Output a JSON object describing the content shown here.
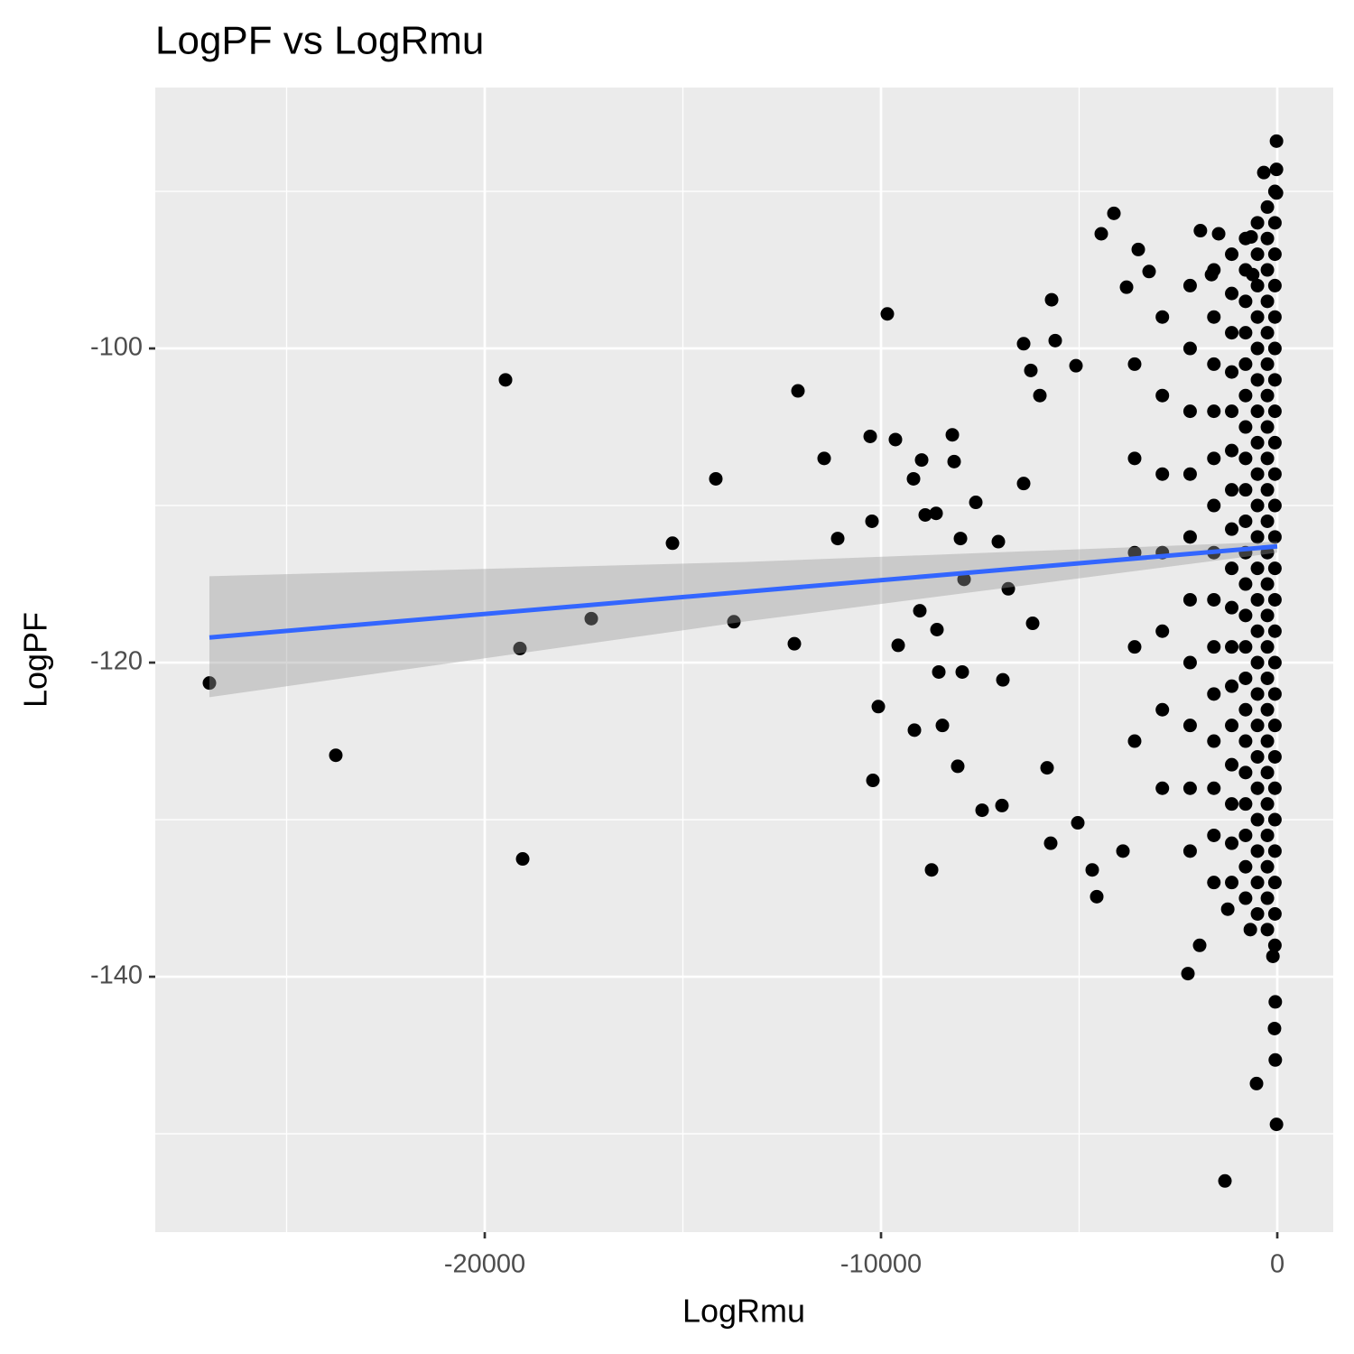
{
  "chart_data": {
    "type": "scatter",
    "title": "LogPF vs LogRmu",
    "x_label": "LogRmu",
    "y_label": "LogPF",
    "xlim": [
      -28315,
      1412
    ],
    "ylim": [
      -156.26,
      -83.39
    ],
    "xticks": [
      -20000,
      -10000,
      0
    ],
    "yticks": [
      -140,
      -120,
      -100
    ],
    "grid": true,
    "color": "#000000",
    "x": [
      -26948,
      -23759,
      -19476,
      -19112,
      -19043,
      -17312,
      -15262,
      -14169,
      -13713,
      -12187,
      -12096,
      -11435,
      -11093,
      -10273,
      -10228,
      -10205,
      -10068,
      -9841,
      -9636,
      -9567,
      -9180,
      -9157,
      -9021,
      -8975,
      -8884,
      -8610,
      -8724,
      -8588,
      -8542,
      -8451,
      -8200,
      -8155,
      -8064,
      -7995,
      -7950,
      -7904,
      -7608,
      -7449,
      -7039,
      -6948,
      -6925,
      -6788,
      -6401,
      -6219,
      -6401,
      -6173,
      -5991,
      -5809,
      -5718,
      -5695,
      -5604,
      -5080,
      -5034,
      -4670,
      -4556,
      -4442,
      -4123,
      -3895,
      -3804,
      -3508,
      -3235,
      -2255,
      -1959,
      -1321,
      -524,
      -20,
      -20,
      -20,
      -20,
      -340,
      -660,
      -1940,
      -1480,
      -1660,
      -620,
      -1250,
      -680,
      -110,
      -70,
      -50,
      -50,
      -60,
      -60,
      -60,
      -60,
      -60,
      -60,
      -60,
      -60,
      -60,
      -60,
      -60,
      -60,
      -60,
      -60,
      -60,
      -60,
      -60,
      -60,
      -60,
      -60,
      -60,
      -60,
      -60,
      -60,
      -60,
      -250,
      -250,
      -250,
      -250,
      -250,
      -250,
      -250,
      -250,
      -250,
      -250,
      -250,
      -250,
      -250,
      -250,
      -250,
      -250,
      -250,
      -250,
      -250,
      -250,
      -250,
      -250,
      -250,
      -250,
      -500,
      -500,
      -500,
      -500,
      -500,
      -500,
      -500,
      -500,
      -500,
      -500,
      -500,
      -500,
      -500,
      -500,
      -500,
      -500,
      -500,
      -500,
      -500,
      -500,
      -500,
      -500,
      -500,
      -800,
      -800,
      -800,
      -800,
      -800,
      -800,
      -800,
      -800,
      -800,
      -800,
      -800,
      -800,
      -800,
      -800,
      -800,
      -800,
      -800,
      -800,
      -800,
      -800,
      -800,
      -800,
      -1150,
      -1150,
      -1150,
      -1150,
      -1150,
      -1150,
      -1150,
      -1150,
      -1150,
      -1150,
      -1150,
      -1150,
      -1150,
      -1150,
      -1150,
      -1150,
      -1150,
      -1600,
      -1600,
      -1600,
      -1600,
      -1600,
      -1600,
      -1600,
      -1600,
      -1600,
      -1600,
      -1600,
      -1600,
      -1600,
      -1600,
      -2200,
      -2200,
      -2200,
      -2200,
      -2200,
      -2200,
      -2200,
      -2200,
      -2200,
      -2200,
      -2900,
      -2900,
      -2900,
      -2900,
      -2900,
      -2900,
      -2900,
      -3600,
      -3600,
      -3600,
      -3600,
      -3600
    ],
    "values": [
      -121.3,
      -125.9,
      -102.0,
      -119.1,
      -132.5,
      -117.2,
      -112.4,
      -108.3,
      -117.4,
      -118.8,
      -102.7,
      -107.0,
      -112.1,
      -105.6,
      -111.0,
      -127.5,
      -122.8,
      -97.8,
      -105.8,
      -118.9,
      -108.3,
      -124.3,
      -116.7,
      -107.1,
      -110.6,
      -110.5,
      -133.2,
      -117.9,
      -120.6,
      -124.0,
      -105.5,
      -107.2,
      -126.6,
      -112.1,
      -120.6,
      -114.7,
      -109.8,
      -129.4,
      -112.3,
      -129.1,
      -121.1,
      -115.3,
      -99.7,
      -101.4,
      -108.6,
      -117.5,
      -103.0,
      -126.7,
      -131.5,
      -96.9,
      -99.5,
      -101.1,
      -130.2,
      -133.2,
      -134.9,
      -92.7,
      -91.4,
      -132.0,
      -96.1,
      -93.7,
      -95.1,
      -139.8,
      -138.0,
      -153.0,
      -146.8,
      -149.4,
      -86.8,
      -88.6,
      -90.1,
      -88.8,
      -92.9,
      -92.5,
      -92.7,
      -95.3,
      -95.3,
      -135.7,
      -137.0,
      -138.7,
      -143.3,
      -145.3,
      -141.6,
      -90,
      -92,
      -94,
      -96,
      -98,
      -100,
      -102,
      -104,
      -106,
      -108,
      -110,
      -112,
      -114,
      -116,
      -118,
      -120,
      -122,
      -124,
      -126,
      -128,
      -130,
      -132,
      -134,
      -136,
      -138,
      -91,
      -93,
      -95,
      -97,
      -99,
      -101,
      -103,
      -105,
      -107,
      -109,
      -111,
      -113,
      -115,
      -117,
      -119,
      -121,
      -123,
      -125,
      -127,
      -129,
      -131,
      -133,
      -135,
      -137,
      -92,
      -94,
      -96,
      -98,
      -100,
      -102,
      -104,
      -106,
      -108,
      -110,
      -112,
      -114,
      -116,
      -118,
      -120,
      -122,
      -124,
      -126,
      -128,
      -130,
      -132,
      -134,
      -136,
      -93,
      -95,
      -97,
      -99,
      -101,
      -103,
      -105,
      -107,
      -109,
      -111,
      -113,
      -115,
      -117,
      -119,
      -121,
      -123,
      -125,
      -127,
      -129,
      -131,
      -133,
      -135,
      -94,
      -96.5,
      -99,
      -101.5,
      -104,
      -106.5,
      -109,
      -111.5,
      -114,
      -116.5,
      -119,
      -121.5,
      -124,
      -126.5,
      -129,
      -131.5,
      -134,
      -95,
      -98,
      -101,
      -104,
      -107,
      -110,
      -113,
      -116,
      -119,
      -122,
      -125,
      -128,
      -131,
      -134,
      -96,
      -100,
      -104,
      -108,
      -112,
      -116,
      -120,
      -124,
      -128,
      -132,
      -98,
      -103,
      -108,
      -113,
      -118,
      -123,
      -128,
      -101,
      -107,
      -113,
      -119,
      -125
    ],
    "fit": {
      "color": "#3366ff",
      "band_color": "#999999",
      "x": [
        -26948,
        -13474,
        0
      ],
      "y": [
        -118.4,
        -115.5,
        -112.6
      ],
      "lower": [
        -122.2,
        -117.4,
        -113.0
      ],
      "upper": [
        -114.5,
        -113.6,
        -112.3
      ]
    }
  }
}
